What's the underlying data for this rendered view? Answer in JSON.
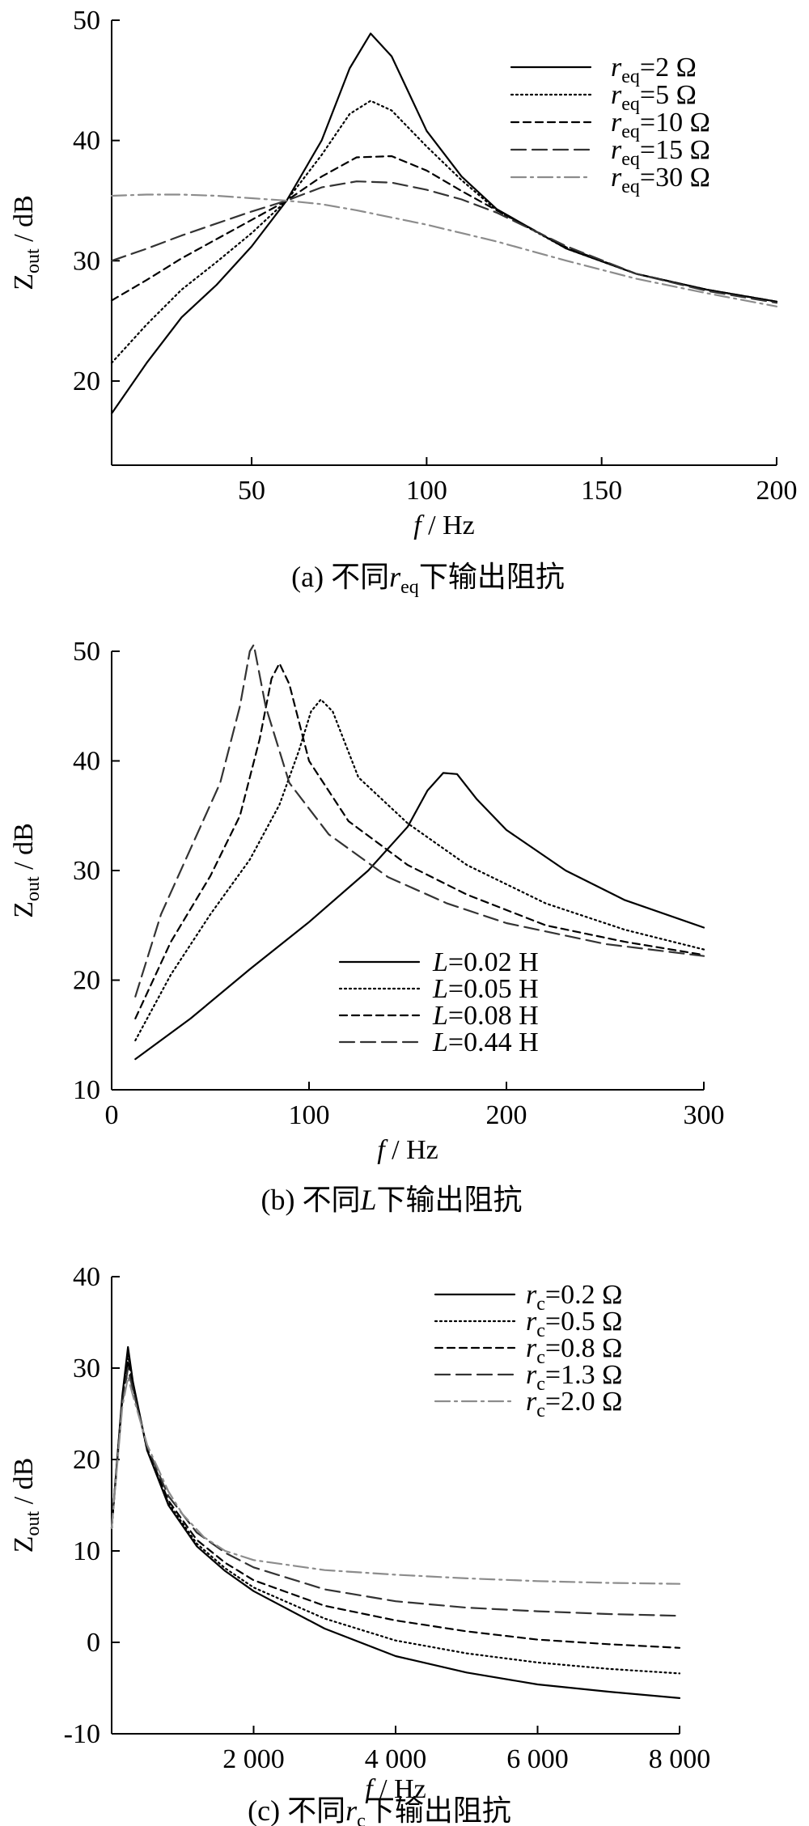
{
  "chart_data": [
    {
      "type": "line",
      "caption": "(a)  不同r_eq下输出阻抗",
      "caption_parts": {
        "prefix": "(a)  不同",
        "var": "r",
        "sub": "eq",
        "suffix": "下输出阻抗"
      },
      "xlabel": "f / Hz",
      "ylabel": "Z_out / dB",
      "xlim": [
        10,
        200
      ],
      "ylim": [
        13,
        50
      ],
      "xticks": [
        50,
        100,
        150,
        200
      ],
      "xtick_labels": [
        "50",
        "100",
        "150",
        "200"
      ],
      "yticks": [
        20,
        30,
        40,
        50
      ],
      "ytick_labels": [
        "20",
        "30",
        "40",
        "50"
      ],
      "legend_position": "top-right",
      "series": [
        {
          "name": "r_eq=2 Ω",
          "var": "r",
          "sub": "eq",
          "rest": "=2  Ω",
          "color": "#000000",
          "dash": "",
          "x": [
            10,
            20,
            30,
            40,
            50,
            60,
            70,
            78,
            84,
            90,
            100,
            110,
            120,
            140,
            160,
            180,
            200
          ],
          "y": [
            17.3,
            21.5,
            25.3,
            28.0,
            31.2,
            35.0,
            40.0,
            46.0,
            48.9,
            47.0,
            40.8,
            37.0,
            34.3,
            31.0,
            28.9,
            27.6,
            26.6
          ]
        },
        {
          "name": "r_eq=5 Ω",
          "var": "r",
          "sub": "eq",
          "rest": "=5  Ω",
          "color": "#000000",
          "dash": "2 4",
          "x": [
            10,
            20,
            30,
            40,
            50,
            60,
            70,
            78,
            84,
            90,
            100,
            110,
            120,
            140,
            160,
            180,
            200
          ],
          "y": [
            21.5,
            24.7,
            27.6,
            29.9,
            32.3,
            35.0,
            38.8,
            42.2,
            43.3,
            42.5,
            39.5,
            36.7,
            34.2,
            31.0,
            28.9,
            27.6,
            26.6
          ]
        },
        {
          "name": "r_eq=10 Ω",
          "var": "r",
          "sub": "eq",
          "rest": "=10  Ω",
          "color": "#000000",
          "dash": "9 6",
          "x": [
            10,
            20,
            30,
            40,
            50,
            60,
            70,
            80,
            90,
            100,
            110,
            120,
            140,
            160,
            180,
            200
          ],
          "y": [
            26.7,
            28.4,
            30.2,
            31.8,
            33.4,
            35.0,
            37.0,
            38.6,
            38.7,
            37.5,
            35.8,
            34.2,
            31.1,
            28.9,
            27.6,
            26.6
          ]
        },
        {
          "name": "r_eq=15 Ω",
          "var": "r",
          "sub": "eq",
          "rest": "=15  Ω",
          "color": "#333333",
          "dash": "18 8",
          "x": [
            10,
            20,
            30,
            40,
            50,
            60,
            70,
            80,
            90,
            100,
            110,
            120,
            140,
            160,
            180,
            200
          ],
          "y": [
            30.0,
            31.0,
            32.1,
            33.1,
            34.1,
            35.0,
            36.1,
            36.6,
            36.5,
            35.9,
            35.1,
            34.0,
            31.2,
            28.9,
            27.5,
            26.5
          ]
        },
        {
          "name": "r_eq=30 Ω",
          "var": "r",
          "sub": "eq",
          "rest": "=30  Ω",
          "color": "#8c8c8c",
          "dash": "18 6 3 6",
          "x": [
            10,
            20,
            30,
            40,
            50,
            60,
            70,
            80,
            90,
            100,
            110,
            120,
            140,
            160,
            180,
            200
          ],
          "y": [
            35.4,
            35.5,
            35.5,
            35.4,
            35.2,
            35.0,
            34.7,
            34.2,
            33.6,
            33.0,
            32.3,
            31.6,
            30.0,
            28.5,
            27.3,
            26.2
          ]
        }
      ]
    },
    {
      "type": "line",
      "caption": "(b)  不同L下输出阻抗",
      "caption_parts": {
        "prefix": "(b)  不同",
        "var": "L",
        "sub": "",
        "suffix": "下输出阻抗"
      },
      "xlabel": "f / Hz",
      "ylabel": "Z_out / dB",
      "xlim": [
        0,
        300
      ],
      "ylim": [
        10,
        50
      ],
      "xticks": [
        0,
        100,
        200,
        300
      ],
      "xtick_labels": [
        "0",
        "100",
        "200",
        "300"
      ],
      "yticks": [
        10,
        20,
        30,
        40,
        50
      ],
      "ytick_labels": [
        "10",
        "20",
        "30",
        "40",
        "50"
      ],
      "legend_position": "bottom-center",
      "series": [
        {
          "name": "L=0.02 H",
          "var": "L",
          "sub": "",
          "rest": "=0.02 H",
          "color": "#000000",
          "dash": "",
          "x": [
            12,
            40,
            70,
            100,
            130,
            150,
            160,
            168,
            175,
            185,
            200,
            230,
            260,
            300
          ],
          "y": [
            12.8,
            16.5,
            21.0,
            25.3,
            30.0,
            34.0,
            37.3,
            38.9,
            38.8,
            36.5,
            33.7,
            30.0,
            27.3,
            24.8
          ]
        },
        {
          "name": "L=0.05 H",
          "var": "L",
          "sub": "",
          "rest": "=0.05 H",
          "color": "#000000",
          "dash": "2 4",
          "x": [
            12,
            30,
            50,
            70,
            85,
            95,
            101,
            106,
            112,
            125,
            150,
            180,
            220,
            260,
            300
          ],
          "y": [
            14.5,
            20.5,
            26.0,
            31.0,
            36.0,
            41.0,
            44.5,
            45.6,
            44.5,
            38.5,
            34.3,
            30.5,
            27.0,
            24.6,
            22.8
          ]
        },
        {
          "name": "L=0.08 H",
          "var": "L",
          "sub": "",
          "rest": "=0.08 H",
          "color": "#000000",
          "dash": "9 6",
          "x": [
            12,
            30,
            50,
            65,
            75,
            81,
            85,
            90,
            100,
            120,
            150,
            180,
            220,
            260,
            300
          ],
          "y": [
            16.5,
            23.5,
            29.5,
            35.0,
            42.0,
            47.5,
            48.9,
            47.0,
            40.0,
            34.5,
            30.5,
            27.8,
            25.0,
            23.5,
            22.3
          ]
        },
        {
          "name": "L=0.44 H",
          "var": "L",
          "sub": "",
          "rest": "=0.44 H",
          "color": "#333333",
          "dash": "18 8",
          "x": [
            12,
            25,
            40,
            55,
            65,
            70,
            72,
            78,
            90,
            110,
            140,
            170,
            200,
            250,
            300
          ],
          "y": [
            18.5,
            26.0,
            32.0,
            38.0,
            45.0,
            50.0,
            50.6,
            45.0,
            38.0,
            33.3,
            29.4,
            27.0,
            25.2,
            23.3,
            22.2
          ]
        }
      ]
    },
    {
      "type": "line",
      "caption": "(c)  不同r_c下输出阻抗",
      "caption_parts": {
        "prefix": "(c)  不同",
        "var": "r",
        "sub": "c",
        "suffix": "下输出阻抗"
      },
      "xlabel": "f / Hz",
      "ylabel": "Z_out / dB",
      "xlim": [
        0,
        8000
      ],
      "ylim": [
        -10,
        40
      ],
      "xticks": [
        2000,
        4000,
        6000,
        8000
      ],
      "xtick_labels": [
        "2 000",
        "4 000",
        "6 000",
        "8 000"
      ],
      "yticks": [
        -10,
        0,
        10,
        20,
        30,
        40
      ],
      "ytick_labels": [
        "-10",
        "0",
        "10",
        "20",
        "30",
        "40"
      ],
      "legend_position": "top-right",
      "series": [
        {
          "name": "r_c=0.2 Ω",
          "var": "r",
          "sub": "c",
          "rest": "=0.2  Ω",
          "color": "#000000",
          "dash": "",
          "x": [
            0,
            150,
            230,
            300,
            500,
            800,
            1200,
            1600,
            2000,
            3000,
            4000,
            5000,
            6000,
            7000,
            8000
          ],
          "y": [
            12.5,
            27.0,
            32.3,
            28.5,
            21.0,
            15.0,
            10.5,
            7.8,
            5.6,
            1.5,
            -1.5,
            -3.3,
            -4.6,
            -5.4,
            -6.1
          ]
        },
        {
          "name": "r_c=0.5 Ω",
          "var": "r",
          "sub": "c",
          "rest": "=0.5  Ω",
          "color": "#000000",
          "dash": "2 4",
          "x": [
            0,
            150,
            230,
            300,
            500,
            800,
            1200,
            1600,
            2000,
            3000,
            4000,
            5000,
            6000,
            7000,
            8000
          ],
          "y": [
            12.5,
            26.8,
            31.5,
            28.2,
            21.0,
            15.2,
            10.8,
            8.1,
            6.0,
            2.6,
            0.2,
            -1.2,
            -2.2,
            -2.9,
            -3.4
          ]
        },
        {
          "name": "r_c=0.8 Ω",
          "var": "r",
          "sub": "c",
          "rest": "=0.8  Ω",
          "color": "#000000",
          "dash": "9 6",
          "x": [
            0,
            150,
            230,
            300,
            500,
            800,
            1200,
            1600,
            2000,
            3000,
            4000,
            5000,
            6000,
            7000,
            8000
          ],
          "y": [
            12.5,
            26.5,
            30.8,
            28.0,
            21.2,
            15.5,
            11.2,
            8.7,
            6.8,
            4.0,
            2.4,
            1.2,
            0.3,
            -0.2,
            -0.6
          ]
        },
        {
          "name": "r_c=1.3 Ω",
          "var": "r",
          "sub": "c",
          "rest": "=1.3  Ω",
          "color": "#333333",
          "dash": "18 8",
          "x": [
            0,
            150,
            230,
            300,
            500,
            800,
            1200,
            1600,
            2000,
            3000,
            4000,
            5000,
            6000,
            7000,
            8000
          ],
          "y": [
            12.5,
            26.2,
            30.0,
            27.6,
            21.4,
            16.0,
            12.0,
            9.8,
            8.2,
            5.8,
            4.5,
            3.8,
            3.4,
            3.1,
            2.9
          ]
        },
        {
          "name": "r_c=2.0 Ω",
          "var": "r",
          "sub": "c",
          "rest": "=2.0  Ω",
          "color": "#8c8c8c",
          "dash": "18 6 3 6",
          "x": [
            0,
            150,
            230,
            300,
            500,
            800,
            1000,
            1300,
            1600,
            2000,
            3000,
            4000,
            5000,
            6000,
            7000,
            8000
          ],
          "y": [
            12.5,
            25.8,
            29.0,
            27.0,
            21.6,
            16.5,
            14.0,
            11.5,
            10.0,
            9.0,
            7.9,
            7.4,
            7.0,
            6.7,
            6.5,
            6.4
          ]
        }
      ]
    }
  ]
}
